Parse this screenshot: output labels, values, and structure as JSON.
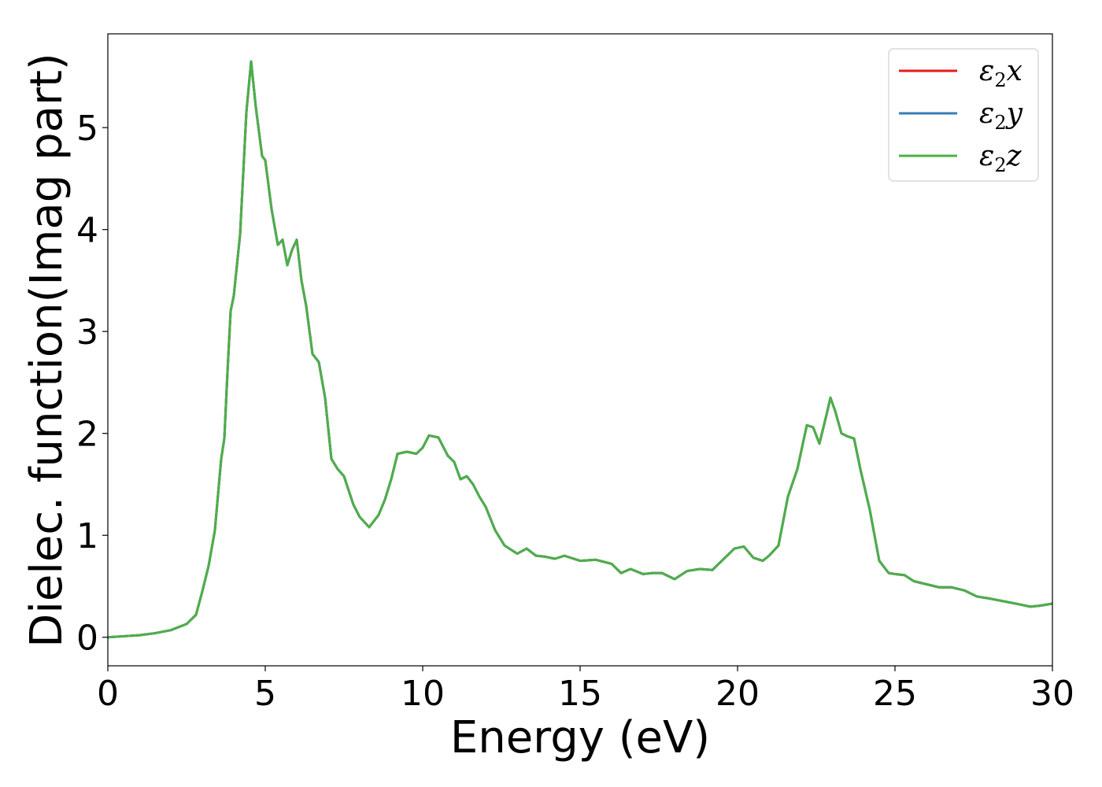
{
  "chart_data": {
    "type": "line",
    "xlabel": "Energy (eV)",
    "ylabel": "Dielec. function(Imag part)",
    "xlim": [
      0,
      30
    ],
    "ylim": [
      -0.28,
      5.92
    ],
    "xticks": [
      0,
      5,
      10,
      15,
      20,
      25,
      30
    ],
    "xtick_labels": [
      "0",
      "5",
      "10",
      "15",
      "20",
      "25",
      "30"
    ],
    "yticks": [
      0,
      1,
      2,
      3,
      4,
      5
    ],
    "ytick_labels": [
      "0",
      "1",
      "2",
      "3",
      "4",
      "5"
    ],
    "grid": false,
    "legend_position": "top-right",
    "x": [
      0,
      0.5,
      1,
      1.5,
      2,
      2.5,
      2.8,
      3.0,
      3.2,
      3.4,
      3.6,
      3.7,
      3.8,
      3.9,
      4.0,
      4.2,
      4.4,
      4.55,
      4.7,
      4.9,
      5.0,
      5.2,
      5.4,
      5.55,
      5.7,
      5.85,
      6.0,
      6.15,
      6.3,
      6.5,
      6.7,
      6.9,
      7.1,
      7.3,
      7.5,
      7.8,
      8.0,
      8.3,
      8.6,
      8.8,
      9.0,
      9.2,
      9.5,
      9.8,
      10.0,
      10.2,
      10.5,
      10.8,
      11.0,
      11.2,
      11.4,
      11.6,
      11.8,
      12.0,
      12.3,
      12.6,
      13.0,
      13.3,
      13.6,
      13.9,
      14.2,
      14.5,
      15.0,
      15.5,
      16.0,
      16.3,
      16.6,
      17.0,
      17.3,
      17.6,
      18.0,
      18.4,
      18.8,
      19.2,
      19.6,
      19.9,
      20.2,
      20.5,
      20.8,
      21.0,
      21.3,
      21.6,
      21.9,
      22.2,
      22.4,
      22.6,
      22.8,
      22.95,
      23.1,
      23.3,
      23.5,
      23.7,
      23.9,
      24.2,
      24.5,
      24.8,
      25.0,
      25.3,
      25.6,
      26.0,
      26.4,
      26.8,
      27.2,
      27.6,
      28.0,
      28.5,
      29.0,
      29.3,
      29.6,
      30.0
    ],
    "series": [
      {
        "name": "ε2x",
        "color": "#e41a1c",
        "values": [
          0.0,
          0.01,
          0.02,
          0.04,
          0.07,
          0.13,
          0.22,
          0.45,
          0.7,
          1.05,
          1.75,
          1.95,
          2.6,
          3.2,
          3.35,
          3.95,
          5.15,
          5.65,
          5.2,
          4.72,
          4.68,
          4.2,
          3.85,
          3.9,
          3.65,
          3.8,
          3.9,
          3.5,
          3.25,
          2.78,
          2.7,
          2.35,
          1.75,
          1.65,
          1.58,
          1.3,
          1.18,
          1.08,
          1.2,
          1.35,
          1.55,
          1.8,
          1.82,
          1.8,
          1.86,
          1.98,
          1.96,
          1.78,
          1.72,
          1.55,
          1.58,
          1.5,
          1.38,
          1.28,
          1.05,
          0.9,
          0.82,
          0.87,
          0.8,
          0.79,
          0.77,
          0.8,
          0.75,
          0.76,
          0.72,
          0.63,
          0.67,
          0.62,
          0.63,
          0.63,
          0.57,
          0.65,
          0.67,
          0.66,
          0.78,
          0.87,
          0.89,
          0.78,
          0.75,
          0.8,
          0.9,
          1.38,
          1.65,
          2.08,
          2.06,
          1.9,
          2.15,
          2.35,
          2.22,
          2.0,
          1.97,
          1.95,
          1.65,
          1.25,
          0.75,
          0.63,
          0.62,
          0.61,
          0.55,
          0.52,
          0.49,
          0.49,
          0.46,
          0.4,
          0.38,
          0.35,
          0.32,
          0.3,
          0.31,
          0.33
        ]
      },
      {
        "name": "ε2y",
        "color": "#377eb8",
        "values": [
          0.0,
          0.01,
          0.02,
          0.04,
          0.07,
          0.13,
          0.22,
          0.45,
          0.7,
          1.05,
          1.75,
          1.95,
          2.6,
          3.2,
          3.35,
          3.95,
          5.15,
          5.65,
          5.2,
          4.72,
          4.68,
          4.2,
          3.85,
          3.9,
          3.65,
          3.8,
          3.9,
          3.5,
          3.25,
          2.78,
          2.7,
          2.35,
          1.75,
          1.65,
          1.58,
          1.3,
          1.18,
          1.08,
          1.2,
          1.35,
          1.55,
          1.8,
          1.82,
          1.8,
          1.86,
          1.98,
          1.96,
          1.78,
          1.72,
          1.55,
          1.58,
          1.5,
          1.38,
          1.28,
          1.05,
          0.9,
          0.82,
          0.87,
          0.8,
          0.79,
          0.77,
          0.8,
          0.75,
          0.76,
          0.72,
          0.63,
          0.67,
          0.62,
          0.63,
          0.63,
          0.57,
          0.65,
          0.67,
          0.66,
          0.78,
          0.87,
          0.89,
          0.78,
          0.75,
          0.8,
          0.9,
          1.38,
          1.65,
          2.08,
          2.06,
          1.9,
          2.15,
          2.35,
          2.22,
          2.0,
          1.97,
          1.95,
          1.65,
          1.25,
          0.75,
          0.63,
          0.62,
          0.61,
          0.55,
          0.52,
          0.49,
          0.49,
          0.46,
          0.4,
          0.38,
          0.35,
          0.32,
          0.3,
          0.31,
          0.33
        ]
      },
      {
        "name": "ε2z",
        "color": "#4daf4a",
        "values": [
          0.0,
          0.01,
          0.02,
          0.04,
          0.07,
          0.13,
          0.22,
          0.45,
          0.7,
          1.05,
          1.75,
          1.95,
          2.6,
          3.2,
          3.35,
          3.95,
          5.15,
          5.65,
          5.2,
          4.72,
          4.68,
          4.2,
          3.85,
          3.9,
          3.65,
          3.8,
          3.9,
          3.5,
          3.25,
          2.78,
          2.7,
          2.35,
          1.75,
          1.65,
          1.58,
          1.3,
          1.18,
          1.08,
          1.2,
          1.35,
          1.55,
          1.8,
          1.82,
          1.8,
          1.86,
          1.98,
          1.96,
          1.78,
          1.72,
          1.55,
          1.58,
          1.5,
          1.38,
          1.28,
          1.05,
          0.9,
          0.82,
          0.87,
          0.8,
          0.79,
          0.77,
          0.8,
          0.75,
          0.76,
          0.72,
          0.63,
          0.67,
          0.62,
          0.63,
          0.63,
          0.57,
          0.65,
          0.67,
          0.66,
          0.78,
          0.87,
          0.89,
          0.78,
          0.75,
          0.8,
          0.9,
          1.38,
          1.65,
          2.08,
          2.06,
          1.9,
          2.15,
          2.35,
          2.22,
          2.0,
          1.97,
          1.95,
          1.65,
          1.25,
          0.75,
          0.63,
          0.62,
          0.61,
          0.55,
          0.52,
          0.49,
          0.49,
          0.46,
          0.4,
          0.38,
          0.35,
          0.32,
          0.3,
          0.31,
          0.33
        ]
      }
    ],
    "legend": [
      {
        "symbol": "ε",
        "sub": "2",
        "var": "x"
      },
      {
        "symbol": "ε",
        "sub": "2",
        "var": "y"
      },
      {
        "symbol": "ε",
        "sub": "2",
        "var": "z"
      }
    ]
  }
}
